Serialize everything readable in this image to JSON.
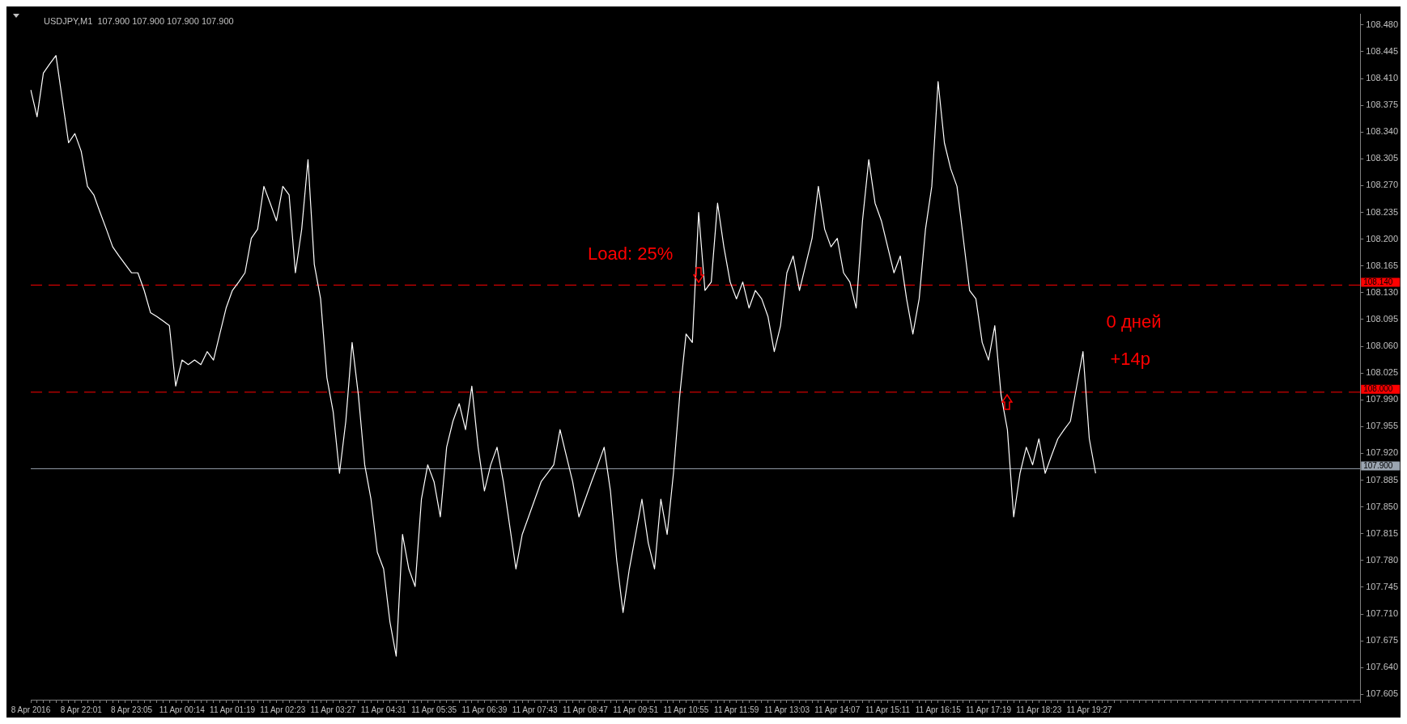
{
  "chart_data": {
    "type": "line",
    "title": "USDJPY,M1  107.900 107.900 107.900 107.900",
    "categories": [
      "8 Apr 2016",
      null,
      null,
      null,
      null,
      null,
      null,
      null,
      "8 Apr 22:01",
      null,
      null,
      null,
      null,
      null,
      null,
      null,
      "8 Apr 23:05",
      null,
      null,
      null,
      null,
      null,
      null,
      null,
      "11 Apr 00:14",
      null,
      null,
      null,
      null,
      null,
      null,
      null,
      "11 Apr 01:19",
      null,
      null,
      null,
      null,
      null,
      null,
      null,
      "11 Apr 02:23",
      null,
      null,
      null,
      null,
      null,
      null,
      null,
      "11 Apr 03:27",
      null,
      null,
      null,
      null,
      null,
      null,
      null,
      "11 Apr 04:31",
      null,
      null,
      null,
      null,
      null,
      null,
      null,
      "11 Apr 05:35",
      null,
      null,
      null,
      null,
      null,
      null,
      null,
      "11 Apr 06:39",
      null,
      null,
      null,
      null,
      null,
      null,
      null,
      "11 Apr 07:43",
      null,
      null,
      null,
      null,
      null,
      null,
      null,
      "11 Apr 08:47",
      null,
      null,
      null,
      null,
      null,
      null,
      null,
      "11 Apr 09:51",
      null,
      null,
      null,
      null,
      null,
      null,
      null,
      "11 Apr 10:55",
      null,
      null,
      null,
      null,
      null,
      null,
      null,
      "11 Apr 11:59",
      null,
      null,
      null,
      null,
      null,
      null,
      null,
      "11 Apr 13:03",
      null,
      null,
      null,
      null,
      null,
      null,
      null,
      "11 Apr 14:07",
      null,
      null,
      null,
      null,
      null,
      null,
      null,
      "11 Apr 15:11",
      null,
      null,
      null,
      null,
      null,
      null,
      null,
      "11 Apr 16:15",
      null,
      null,
      null,
      null,
      null,
      null,
      null,
      "11 Apr 17:19",
      null,
      null,
      null,
      null,
      null,
      null,
      null,
      "11 Apr 18:23",
      null,
      null,
      null,
      null,
      null,
      null,
      null,
      "11 Apr 19:27",
      null,
      null,
      null,
      null,
      null,
      null,
      null,
      null,
      null,
      null,
      null,
      null,
      null,
      null,
      null,
      null,
      null,
      null,
      null,
      null,
      null,
      null,
      null,
      null,
      null,
      null,
      null,
      null,
      null,
      null,
      null,
      null,
      null,
      null,
      null,
      null,
      null,
      null,
      null,
      null,
      null,
      null,
      null
    ],
    "series": [
      {
        "color": "#ffffff",
        "values": [
          108.395,
          108.36,
          108.417,
          108.429,
          108.44,
          108.383,
          108.326,
          108.338,
          108.315,
          108.269,
          108.258,
          108.235,
          108.213,
          108.19,
          108.178,
          108.167,
          108.156,
          108.156,
          108.133,
          108.104,
          108.099,
          108.093,
          108.087,
          108.008,
          108.042,
          108.036,
          108.042,
          108.036,
          108.053,
          108.042,
          108.076,
          108.11,
          108.133,
          108.144,
          108.156,
          108.201,
          108.213,
          108.269,
          108.247,
          108.224,
          108.269,
          108.258,
          108.156,
          108.213,
          108.304,
          108.167,
          108.122,
          108.019,
          107.974,
          107.894,
          107.962,
          108.065,
          107.996,
          107.905,
          107.86,
          107.791,
          107.769,
          107.7,
          107.655,
          107.814,
          107.769,
          107.746,
          107.86,
          107.905,
          107.883,
          107.837,
          107.928,
          107.962,
          107.985,
          107.951,
          108.008,
          107.928,
          107.871,
          107.905,
          107.928,
          107.883,
          107.826,
          107.769,
          107.814,
          107.837,
          107.86,
          107.883,
          107.894,
          107.905,
          107.951,
          107.917,
          107.883,
          107.837,
          107.86,
          107.883,
          107.905,
          107.928,
          107.871,
          107.78,
          107.712,
          107.769,
          107.814,
          107.86,
          107.803,
          107.769,
          107.86,
          107.814,
          107.894,
          107.996,
          108.076,
          108.065,
          108.235,
          108.133,
          108.144,
          108.247,
          108.19,
          108.144,
          108.122,
          108.144,
          108.11,
          108.133,
          108.122,
          108.099,
          108.053,
          108.087,
          108.156,
          108.178,
          108.133,
          108.167,
          108.201,
          108.269,
          108.213,
          108.19,
          108.201,
          108.156,
          108.144,
          108.11,
          108.224,
          108.304,
          108.247,
          108.224,
          108.19,
          108.156,
          108.178,
          108.122,
          108.076,
          108.122,
          108.213,
          108.269,
          108.406,
          108.326,
          108.292,
          108.269,
          108.201,
          108.133,
          108.122,
          108.065,
          108.042,
          108.087,
          107.996,
          107.951,
          107.837,
          107.894,
          107.928,
          107.905,
          107.939,
          107.894,
          107.917,
          107.939,
          107.951,
          107.962,
          108.008,
          108.053,
          107.939,
          107.894,
          null,
          null,
          null,
          null,
          null,
          null,
          null,
          null,
          null,
          null,
          null,
          null,
          null,
          null,
          null,
          null,
          null,
          null,
          null,
          null,
          null,
          null,
          null,
          null,
          null,
          null,
          null,
          null,
          null,
          null,
          null,
          null,
          null,
          null,
          null,
          null,
          null,
          null,
          null,
          null,
          null,
          null
        ]
      }
    ],
    "ylim": [
      107.598,
      108.494
    ],
    "yticks": [
      107.605,
      {
        "value": 107.64,
        "label": "107.640"
      },
      107.675,
      {
        "value": 107.71,
        "label": "107.710"
      },
      107.745,
      {
        "value": 107.78,
        "label": "107.780"
      },
      107.815,
      {
        "value": 107.85,
        "label": "107.850"
      },
      107.885,
      {
        "value": 107.92,
        "label": "107.920"
      },
      107.955,
      {
        "value": 107.99,
        "label": "107.990"
      },
      108.025,
      {
        "value": 108.06,
        "label": "108.060"
      },
      108.095,
      {
        "value": 108.13,
        "label": "108.130"
      },
      108.165,
      {
        "value": 108.2,
        "label": "108.200"
      },
      108.235,
      {
        "value": 108.27,
        "label": "108.270"
      },
      108.305,
      {
        "value": 108.34,
        "label": "108.340"
      },
      108.375,
      {
        "value": 108.41,
        "label": "108.410"
      },
      108.445,
      {
        "value": 108.48,
        "label": "108.480"
      }
    ],
    "ref_lines": [
      {
        "axis": "y",
        "value": 108.14,
        "label": "108.140",
        "color": "#ff0000",
        "line_style": "dashed"
      },
      {
        "axis": "y",
        "value": 108.0,
        "label": "108.000",
        "color": "#ff0000",
        "line_style": "dashed"
      },
      {
        "axis": "y",
        "value": 107.9,
        "label": "107.900",
        "color": "#9aa4b0",
        "line_style": "solid"
      }
    ],
    "annotations": [
      "Load: 25%",
      "0 дней",
      "+14р"
    ],
    "marker": "none",
    "line_style": "solid",
    "legend": false
  }
}
